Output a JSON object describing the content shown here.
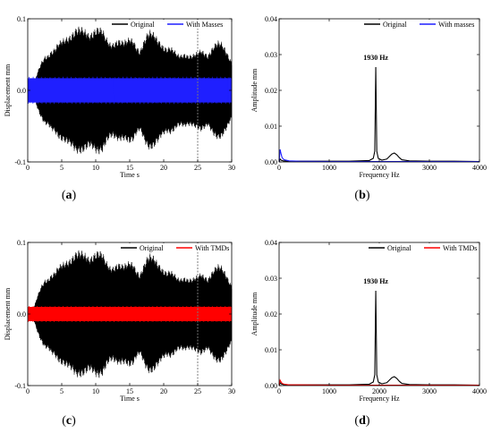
{
  "figure": {
    "captions": [
      {
        "open": "(",
        "letter": "a",
        "close": ")"
      },
      {
        "open": "(",
        "letter": "b",
        "close": ")"
      },
      {
        "open": "(",
        "letter": "c",
        "close": ")"
      },
      {
        "open": "(",
        "letter": "d",
        "close": ")"
      }
    ],
    "colors": {
      "original": "#000000",
      "masses": "#1f1fff",
      "tmds": "#ff0000",
      "dashed": "#7a7a7a"
    }
  },
  "chart_data": [
    {
      "type": "area",
      "xlabel": "Time s",
      "ylabel": "Displacement mm",
      "xlim": [
        0,
        30
      ],
      "ylim": [
        -0.1,
        0.1
      ],
      "x_ticks": [
        "0",
        "5",
        "10",
        "15",
        "20",
        "25",
        "30"
      ],
      "y_ticks": [
        "-0.1",
        "0.0",
        "0.1"
      ],
      "legend_position": "top-right",
      "vertical_marker_x": 25,
      "x": [
        0,
        0.5,
        1.0,
        1.5,
        2.0,
        2.5,
        3.0,
        3.5,
        4.0,
        4.5,
        5.0,
        5.5,
        6.0,
        6.5,
        7.0,
        7.5,
        8.0,
        8.5,
        9.0,
        9.5,
        10.0,
        10.5,
        11.0,
        11.5,
        12.0,
        12.5,
        13.0,
        13.5,
        14.0,
        14.5,
        15.0,
        15.5,
        16.0,
        16.5,
        17.0,
        17.5,
        18.0,
        18.5,
        19.0,
        19.5,
        20.0,
        20.5,
        21.0,
        21.5,
        22.0,
        22.5,
        23.0,
        23.5,
        24.0,
        24.5,
        25.0,
        25.5,
        26.0,
        26.5,
        27.0,
        27.5,
        28.0,
        28.5,
        29.0,
        29.5,
        30.0
      ],
      "series": [
        {
          "name": "Original",
          "upper": [
            0.004,
            0.006,
            0.012,
            0.028,
            0.04,
            0.048,
            0.05,
            0.056,
            0.06,
            0.068,
            0.072,
            0.074,
            0.076,
            0.08,
            0.087,
            0.09,
            0.089,
            0.085,
            0.08,
            0.082,
            0.088,
            0.09,
            0.087,
            0.076,
            0.068,
            0.066,
            0.07,
            0.072,
            0.07,
            0.072,
            0.075,
            0.072,
            0.062,
            0.056,
            0.068,
            0.08,
            0.085,
            0.082,
            0.075,
            0.068,
            0.062,
            0.06,
            0.062,
            0.058,
            0.052,
            0.05,
            0.052,
            0.05,
            0.05,
            0.052,
            0.055,
            0.058,
            0.054,
            0.05,
            0.058,
            0.066,
            0.07,
            0.068,
            0.06,
            0.05,
            0.04
          ],
          "lower": [
            -0.004,
            -0.006,
            -0.012,
            -0.028,
            -0.04,
            -0.048,
            -0.05,
            -0.056,
            -0.06,
            -0.068,
            -0.072,
            -0.074,
            -0.076,
            -0.08,
            -0.087,
            -0.09,
            -0.089,
            -0.085,
            -0.08,
            -0.082,
            -0.088,
            -0.09,
            -0.087,
            -0.076,
            -0.068,
            -0.066,
            -0.07,
            -0.072,
            -0.07,
            -0.072,
            -0.075,
            -0.072,
            -0.062,
            -0.056,
            -0.068,
            -0.08,
            -0.085,
            -0.082,
            -0.075,
            -0.068,
            -0.062,
            -0.06,
            -0.062,
            -0.058,
            -0.052,
            -0.05,
            -0.052,
            -0.05,
            -0.05,
            -0.052,
            -0.055,
            -0.058,
            -0.054,
            -0.05,
            -0.058,
            -0.066,
            -0.07,
            -0.068,
            -0.06,
            -0.05,
            -0.04
          ]
        },
        {
          "name": "With Masses",
          "amplitude": 0.017,
          "x_start": 0,
          "x_end": 30
        }
      ]
    },
    {
      "type": "line",
      "xlabel": "Frequency  Hz",
      "ylabel": "Amplitude  mm",
      "xlim": [
        0,
        4000
      ],
      "ylim": [
        0,
        0.04
      ],
      "x_ticks": [
        "0",
        "1000",
        "2000",
        "3000",
        "4000"
      ],
      "y_ticks": [
        "0.00",
        "0.01",
        "0.02",
        "0.03",
        "0.04"
      ],
      "legend_position": "top-right",
      "annotation": {
        "text": "1930 Hz",
        "x": 1930,
        "y": 0.0285
      },
      "series": [
        {
          "name": "Original",
          "x": [
            0,
            20,
            40,
            80,
            150,
            300,
            600,
            1000,
            1400,
            1800,
            1880,
            1910,
            1930,
            1950,
            1980,
            2050,
            2150,
            2200,
            2250,
            2300,
            2350,
            2400,
            2450,
            2600,
            3000,
            3500,
            4000
          ],
          "y": [
            0.0,
            0.0008,
            0.0005,
            0.0003,
            0.0002,
            0.0002,
            0.0002,
            0.0002,
            0.0002,
            0.0004,
            0.001,
            0.003,
            0.0265,
            0.003,
            0.001,
            0.0005,
            0.0008,
            0.0015,
            0.0022,
            0.0025,
            0.002,
            0.0012,
            0.0006,
            0.0003,
            0.0002,
            0.0002,
            0.0001
          ]
        },
        {
          "name": "With masses",
          "x": [
            0,
            20,
            40,
            60,
            100,
            200,
            400,
            1000,
            2000,
            3000,
            4000
          ],
          "y": [
            0.0,
            0.0035,
            0.0022,
            0.0012,
            0.0006,
            0.0003,
            0.0002,
            0.0001,
            0.0001,
            0.0001,
            0.0001
          ]
        }
      ]
    },
    {
      "type": "area",
      "xlabel": "Time s",
      "ylabel": "Displacement mm",
      "xlim": [
        0,
        30
      ],
      "ylim": [
        -0.1,
        0.1
      ],
      "x_ticks": [
        "0",
        "5",
        "10",
        "15",
        "20",
        "25",
        "30"
      ],
      "y_ticks": [
        "-0.1",
        "0.0",
        "0.1"
      ],
      "legend_position": "top-right",
      "vertical_marker_x": 25,
      "x": [
        0,
        0.5,
        1.0,
        1.5,
        2.0,
        2.5,
        3.0,
        3.5,
        4.0,
        4.5,
        5.0,
        5.5,
        6.0,
        6.5,
        7.0,
        7.5,
        8.0,
        8.5,
        9.0,
        9.5,
        10.0,
        10.5,
        11.0,
        11.5,
        12.0,
        12.5,
        13.0,
        13.5,
        14.0,
        14.5,
        15.0,
        15.5,
        16.0,
        16.5,
        17.0,
        17.5,
        18.0,
        18.5,
        19.0,
        19.5,
        20.0,
        20.5,
        21.0,
        21.5,
        22.0,
        22.5,
        23.0,
        23.5,
        24.0,
        24.5,
        25.0,
        25.5,
        26.0,
        26.5,
        27.0,
        27.5,
        28.0,
        28.5,
        29.0,
        29.5,
        30.0
      ],
      "series": [
        {
          "name": "Original",
          "upper": [
            0.004,
            0.006,
            0.012,
            0.028,
            0.04,
            0.048,
            0.05,
            0.056,
            0.06,
            0.068,
            0.072,
            0.074,
            0.076,
            0.08,
            0.087,
            0.09,
            0.089,
            0.085,
            0.08,
            0.082,
            0.088,
            0.09,
            0.087,
            0.076,
            0.068,
            0.066,
            0.07,
            0.072,
            0.07,
            0.072,
            0.075,
            0.072,
            0.062,
            0.056,
            0.068,
            0.08,
            0.085,
            0.082,
            0.075,
            0.068,
            0.062,
            0.06,
            0.062,
            0.058,
            0.052,
            0.05,
            0.052,
            0.05,
            0.05,
            0.052,
            0.055,
            0.058,
            0.054,
            0.05,
            0.058,
            0.066,
            0.07,
            0.068,
            0.06,
            0.05,
            0.04
          ],
          "lower": [
            -0.004,
            -0.006,
            -0.012,
            -0.028,
            -0.04,
            -0.048,
            -0.05,
            -0.056,
            -0.06,
            -0.068,
            -0.072,
            -0.074,
            -0.076,
            -0.08,
            -0.087,
            -0.09,
            -0.089,
            -0.085,
            -0.08,
            -0.082,
            -0.088,
            -0.09,
            -0.087,
            -0.076,
            -0.068,
            -0.066,
            -0.07,
            -0.072,
            -0.07,
            -0.072,
            -0.075,
            -0.072,
            -0.062,
            -0.056,
            -0.068,
            -0.08,
            -0.085,
            -0.082,
            -0.075,
            -0.068,
            -0.062,
            -0.06,
            -0.062,
            -0.058,
            -0.052,
            -0.05,
            -0.052,
            -0.05,
            -0.05,
            -0.052,
            -0.055,
            -0.058,
            -0.054,
            -0.05,
            -0.058,
            -0.066,
            -0.07,
            -0.068,
            -0.06,
            -0.05,
            -0.04
          ]
        },
        {
          "name": "With TMDs",
          "amplitude": 0.01,
          "x_start": 0,
          "x_end": 30
        }
      ]
    },
    {
      "type": "line",
      "xlabel": "Frequency  Hz",
      "ylabel": "Amplitude  mm",
      "xlim": [
        0,
        4000
      ],
      "ylim": [
        0,
        0.04
      ],
      "x_ticks": [
        "0",
        "1000",
        "2000",
        "3000",
        "4000"
      ],
      "y_ticks": [
        "0.00",
        "0.01",
        "0.02",
        "0.03",
        "0.04"
      ],
      "legend_position": "top-right",
      "annotation": {
        "text": "1930 Hz",
        "x": 1930,
        "y": 0.0285
      },
      "series": [
        {
          "name": "Original",
          "x": [
            0,
            20,
            40,
            80,
            150,
            300,
            600,
            1000,
            1400,
            1800,
            1880,
            1910,
            1930,
            1950,
            1980,
            2050,
            2150,
            2200,
            2250,
            2300,
            2350,
            2400,
            2450,
            2600,
            3000,
            3500,
            4000
          ],
          "y": [
            0.0,
            0.0008,
            0.0005,
            0.0003,
            0.0002,
            0.0002,
            0.0002,
            0.0002,
            0.0002,
            0.0004,
            0.001,
            0.003,
            0.0265,
            0.003,
            0.001,
            0.0005,
            0.0008,
            0.0015,
            0.0022,
            0.0025,
            0.002,
            0.0012,
            0.0006,
            0.0003,
            0.0002,
            0.0002,
            0.0001
          ]
        },
        {
          "name": "With TMDs",
          "x": [
            0,
            20,
            40,
            60,
            100,
            200,
            400,
            1000,
            2000,
            3000,
            4000
          ],
          "y": [
            0.0,
            0.0015,
            0.001,
            0.0006,
            0.0004,
            0.0002,
            0.0002,
            0.0001,
            0.0001,
            0.0001,
            0.0001
          ]
        }
      ]
    }
  ]
}
